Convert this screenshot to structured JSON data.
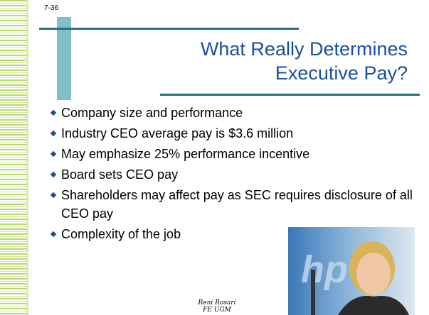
{
  "slide_number": "7-36",
  "title": [
    "What Really Determines",
    "Executive Pay?"
  ],
  "bullets": [
    "Company size and performance",
    "Industry CEO average pay is $3.6 million",
    "May emphasize 25% performance incentive",
    "Board sets CEO pay",
    "Shareholders may affect pay as SEC requires disclosure of all CEO pay",
    "Complexity of the job"
  ],
  "footer": [
    "Reni Rosari",
    "FE UGM"
  ]
}
